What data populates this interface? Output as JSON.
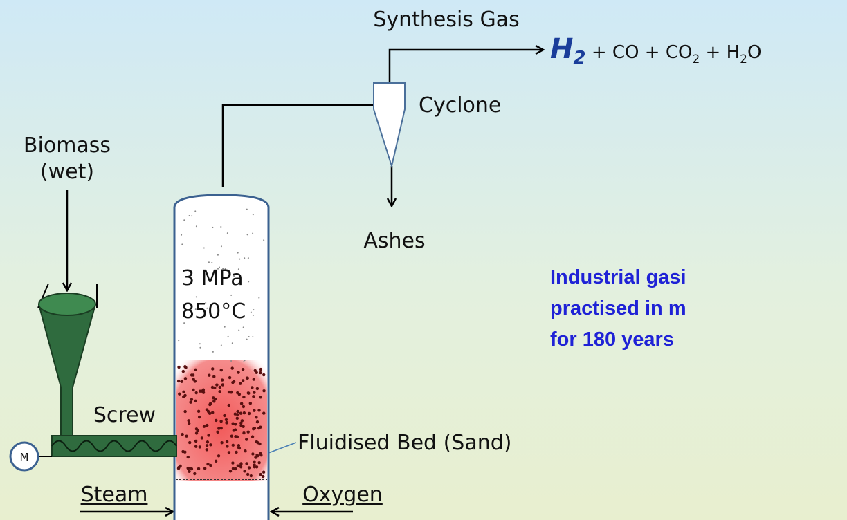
{
  "diagram": {
    "labels": {
      "synthesis_gas": "Synthesis Gas",
      "cyclone": "Cyclone",
      "biomass": [
        "Biomass",
        "(wet)"
      ],
      "ashes": "Ashes",
      "conditions": [
        "3 MPa",
        "850°C"
      ],
      "screw": "Screw",
      "bed": "Fluidised Bed (Sand)",
      "steam": "Steam",
      "oxygen": "Oxygen",
      "motor": "M"
    },
    "formula": {
      "h": "H",
      "h_sub": "2",
      "co": " + CO + CO",
      "co2_sub": "2",
      "h2o_h": " + H",
      "h2o_sub": "2",
      "h2o_o": "O"
    },
    "note": [
      "Industrial gasi",
      "practised in m",
      "for 180 years"
    ]
  }
}
